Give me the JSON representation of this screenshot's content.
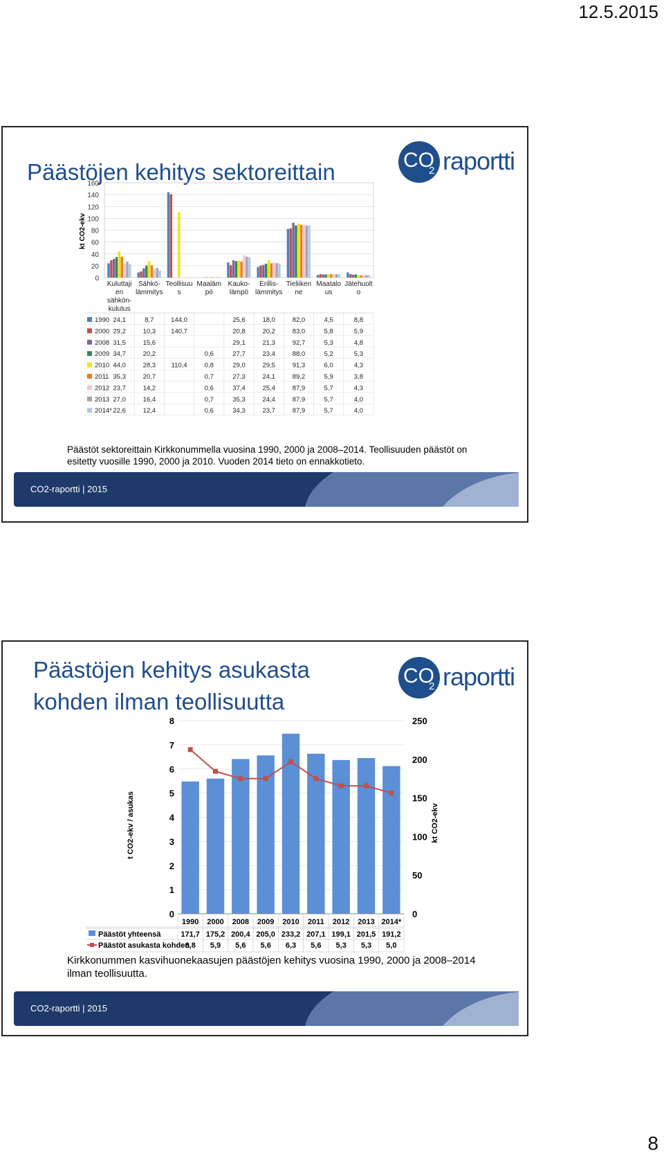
{
  "page": {
    "date": "12.5.2015",
    "number": "8"
  },
  "slide1": {
    "title": "Päästöjen kehitys sektoreittain",
    "logo": {
      "co": "CO",
      "sub": "2",
      "word": "raportti"
    },
    "caption": "Päästöt sektoreittain Kirkkonummella vuosina 1990, 2000 ja 2008–2014. Teollisuuden päästöt on esitetty vuosille 1990, 2000 ja 2010. Vuoden 2014 tieto on ennakkotieto.",
    "footer": "CO2-raportti | 2015"
  },
  "slide2": {
    "title_line1": "Päästöjen kehitys asukasta",
    "title_line2": "kohden ilman teollisuutta",
    "logo": {
      "co": "CO",
      "sub": "2",
      "word": "raportti"
    },
    "caption": "Kirkkonummen kasvihuonekaasujen päästöjen kehitys  vuosina 1990, 2000 ja 2008–2014 ilman teollisuutta.",
    "footer": "CO2-raportti | 2015"
  },
  "chart_data": [
    {
      "type": "bar",
      "ylabel": "kt CO2-ekv",
      "ylim": [
        0,
        160
      ],
      "yticks": [
        0,
        20,
        40,
        60,
        80,
        100,
        120,
        140,
        160
      ],
      "categories": [
        "Kuluttaji en sähkön- kulutus",
        "Sähkö- lämmitys",
        "Teollisuu s",
        "Maaläm pö",
        "Kauko- lämpö",
        "Erillis- lämmitys",
        "Tieliiken ne",
        "Maatalo us",
        "Jätehuolt o"
      ],
      "grid": true,
      "legend": "table-below",
      "series": [
        {
          "name": "1990",
          "color": "#4f81bd",
          "values": [
            24.1,
            8.7,
            144.0,
            null,
            25.6,
            18.0,
            82.0,
            4.5,
            8.8
          ],
          "labels": [
            "24,1",
            "8,7",
            "144,0",
            "",
            "25,6",
            "18,0",
            "82,0",
            "4,5",
            "8,8"
          ]
        },
        {
          "name": "2000",
          "color": "#c0504d",
          "values": [
            29.2,
            10.3,
            140.7,
            null,
            20.8,
            20.2,
            83.0,
            5.8,
            5.9
          ],
          "labels": [
            "29,2",
            "10,3",
            "140,7",
            "",
            "20,8",
            "20,2",
            "83,0",
            "5,8",
            "5,9"
          ]
        },
        {
          "name": "2008",
          "color": "#8064a2",
          "values": [
            31.5,
            15.6,
            null,
            null,
            29.1,
            21.3,
            92.7,
            5.3,
            4.8
          ],
          "labels": [
            "31,5",
            "15,6",
            "",
            "",
            "29,1",
            "21,3",
            "92,7",
            "5,3",
            "4,8"
          ]
        },
        {
          "name": "2009",
          "color": "#2e8b57",
          "values": [
            34.7,
            20.2,
            null,
            0.6,
            27.7,
            23.4,
            88.0,
            5.2,
            5.3
          ],
          "labels": [
            "34,7",
            "20,2",
            "",
            "0,6",
            "27,7",
            "23,4",
            "88,0",
            "5,2",
            "5,3"
          ]
        },
        {
          "name": "2010",
          "color": "#f2e21a",
          "values": [
            44.0,
            28.3,
            110.4,
            0.8,
            29.0,
            29.5,
            91.3,
            6.0,
            4.3
          ],
          "labels": [
            "44,0",
            "28,3",
            "110,4",
            "0,8",
            "29,0",
            "29,5",
            "91,3",
            "6,0",
            "4,3"
          ]
        },
        {
          "name": "2011",
          "color": "#f07d1a",
          "values": [
            35.3,
            20.7,
            null,
            0.7,
            27.3,
            24.1,
            89.2,
            5.9,
            3.8
          ],
          "labels": [
            "35,3",
            "20,7",
            "",
            "0,7",
            "27,3",
            "24,1",
            "89,2",
            "5,9",
            "3,8"
          ]
        },
        {
          "name": "2012",
          "color": "#f4c6de",
          "values": [
            23.7,
            14.2,
            null,
            0.6,
            37.4,
            25.4,
            87.9,
            5.7,
            4.3
          ],
          "labels": [
            "23,7",
            "14,2",
            "",
            "0,6",
            "37,4",
            "25,4",
            "87,9",
            "5,7",
            "4,3"
          ]
        },
        {
          "name": "2013",
          "color": "#a6a6a6",
          "values": [
            27.0,
            16.4,
            null,
            0.7,
            35.3,
            24.4,
            87.9,
            5.7,
            4.0
          ],
          "labels": [
            "27,0",
            "16,4",
            "",
            "0,7",
            "35,3",
            "24,4",
            "87,9",
            "5,7",
            "4,0"
          ]
        },
        {
          "name": "2014*",
          "color": "#b4c7e7",
          "values": [
            22.6,
            12.4,
            null,
            0.6,
            34.3,
            23.7,
            87.9,
            5.7,
            4.0
          ],
          "labels": [
            "22,6",
            "12,4",
            "",
            "0,6",
            "34,3",
            "23,7",
            "87,9",
            "5,7",
            "4,0"
          ]
        }
      ]
    },
    {
      "type": "bar",
      "categories": [
        "1990",
        "2000",
        "2008",
        "2009",
        "2010",
        "2011",
        "2012",
        "2013",
        "2014*"
      ],
      "ylabel_left": "t CO2-ekv / asukas",
      "ylabel_right": "kt CO2-ekv",
      "ylim_left": [
        0,
        8
      ],
      "ylim_right": [
        0,
        250
      ],
      "yticks_left": [
        0,
        1,
        2,
        3,
        4,
        5,
        6,
        7,
        8
      ],
      "yticks_right": [
        0,
        50,
        100,
        150,
        200,
        250
      ],
      "grid": true,
      "legend": "table-below",
      "series": [
        {
          "name": "Päästöt yhteensä",
          "type": "bar",
          "axis": "left",
          "color": "#5b8fd6",
          "values": [
            5.48,
            5.6,
            6.41,
            6.56,
            7.46,
            6.63,
            6.37,
            6.45,
            6.12
          ],
          "labels": [
            "171,7",
            "175,2",
            "200,4",
            "205,0",
            "233,2",
            "207,1",
            "199,1",
            "201,5",
            "191,2"
          ]
        },
        {
          "name": "Päästöt asukasta kohden",
          "type": "line",
          "axis": "left",
          "color": "#c0504d",
          "values": [
            6.8,
            5.9,
            5.6,
            5.6,
            6.3,
            5.6,
            5.3,
            5.3,
            5.0
          ],
          "labels": [
            "6,8",
            "5,9",
            "5,6",
            "5,6",
            "6,3",
            "5,6",
            "5,3",
            "5,3",
            "5,0"
          ]
        }
      ]
    }
  ]
}
